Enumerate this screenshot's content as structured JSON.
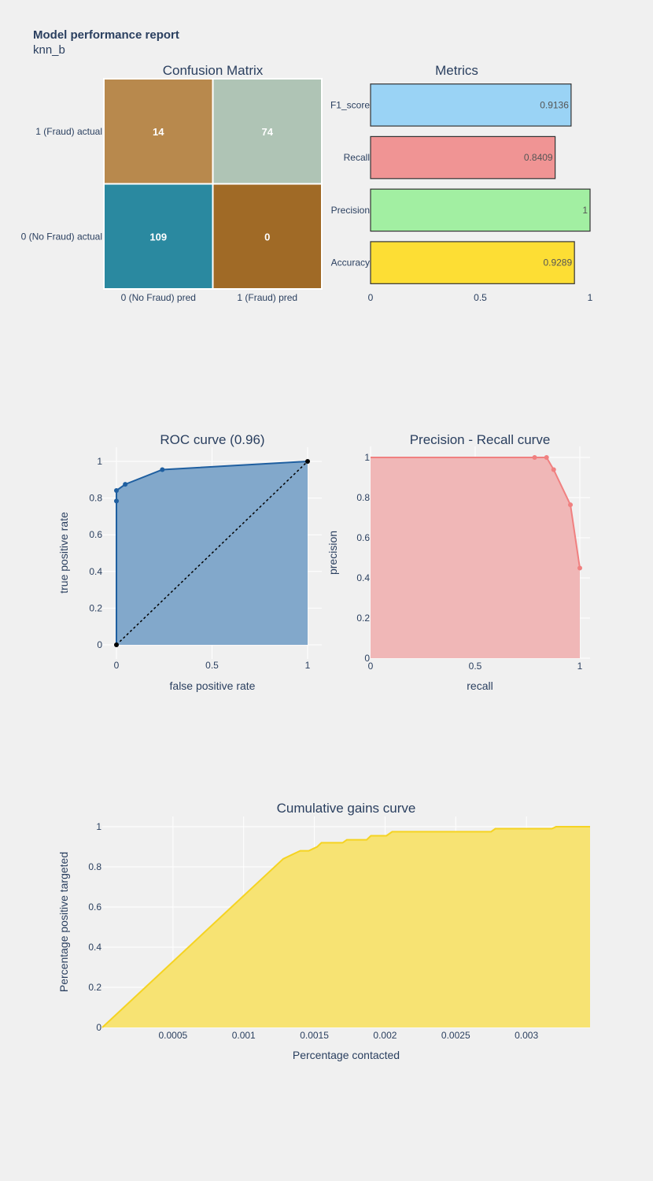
{
  "report": {
    "title": "Model performance report",
    "subtitle": "knn_b"
  },
  "colors": {
    "background": "#f0f0f0",
    "text": "#2a3f5f",
    "grid": "#ffffff",
    "roc_line": "#1f5fa0",
    "roc_fill": "#82a8cb",
    "pr_line": "#f08080",
    "pr_fill": "#f0b7b7",
    "gains_line": "#f5d322",
    "gains_fill": "#f7e373"
  },
  "chart_data": [
    {
      "type": "heatmap",
      "title": "Confusion Matrix",
      "x_categories": [
        "0 (No Fraud) pred",
        "1 (Fraud) pred"
      ],
      "y_categories": [
        "1 (Fraud) actual",
        "0 (No Fraud) actual"
      ],
      "cells": [
        {
          "row": 0,
          "col": 0,
          "value": 14,
          "label": "14",
          "color": "#b8894d"
        },
        {
          "row": 0,
          "col": 1,
          "value": 74,
          "label": "74",
          "color": "#afc4b5"
        },
        {
          "row": 1,
          "col": 0,
          "value": 109,
          "label": "109",
          "color": "#2a89a0"
        },
        {
          "row": 1,
          "col": 1,
          "value": 0,
          "label": "0",
          "color": "#a06a26"
        }
      ]
    },
    {
      "type": "bar",
      "orientation": "horizontal",
      "title": "Metrics",
      "categories": [
        "F1_score",
        "Recall",
        "Precision",
        "Accuracy"
      ],
      "values": [
        0.9136,
        0.8409,
        1,
        0.9289
      ],
      "labels": [
        "0.9136",
        "0.8409",
        "1",
        "0.9289"
      ],
      "colors": [
        "#9ad3f5",
        "#f09494",
        "#a2efa2",
        "#fdde34"
      ],
      "xlim": [
        0,
        1
      ],
      "xticks": [
        "0",
        "0.5",
        "1"
      ]
    },
    {
      "type": "line",
      "title": "ROC curve (0.96)",
      "xlabel": "false positive rate",
      "ylabel": "true positive rate",
      "xlim": [
        0,
        1
      ],
      "ylim": [
        0,
        1
      ],
      "xticks": [
        "0",
        "0.5",
        "1"
      ],
      "yticks": [
        "0",
        "0.2",
        "0.4",
        "0.6",
        "0.8",
        "1"
      ],
      "x": [
        0,
        0,
        0,
        0.046,
        0.24,
        1
      ],
      "y": [
        0,
        0.784,
        0.841,
        0.875,
        0.955,
        1
      ],
      "baseline": {
        "x": [
          0,
          1
        ],
        "y": [
          0,
          1
        ]
      }
    },
    {
      "type": "area",
      "title": "Precision - Recall curve",
      "xlabel": "recall",
      "ylabel": "precision",
      "xlim": [
        0,
        1
      ],
      "ylim": [
        0,
        1
      ],
      "xticks": [
        "0",
        "0.5",
        "1"
      ],
      "yticks": [
        "0",
        "0.2",
        "0.4",
        "0.6",
        "0.8",
        "1"
      ],
      "x": [
        0,
        0.784,
        0.841,
        0.875,
        0.955,
        1
      ],
      "y": [
        1,
        1,
        1,
        0.939,
        0.764,
        0.449
      ]
    },
    {
      "type": "area",
      "title": "Cumulative gains curve",
      "xlabel": "Percentage contacted",
      "ylabel": "Percentage positive targeted",
      "xlim": [
        0,
        0.00345
      ],
      "ylim": [
        0,
        1
      ],
      "xticks": [
        "0.0005",
        "0.001",
        "0.0015",
        "0.002",
        "0.0025",
        "0.003"
      ],
      "yticks": [
        "0",
        "0.2",
        "0.4",
        "0.6",
        "0.8",
        "1"
      ],
      "x": [
        0,
        0.00128,
        0.00131,
        0.00134,
        0.00137,
        0.0014,
        0.00146,
        0.00149,
        0.00152,
        0.00155,
        0.0017,
        0.00173,
        0.00187,
        0.0019,
        0.00201,
        0.00205,
        0.00275,
        0.00278,
        0.00318,
        0.00321,
        0.00345
      ],
      "y": [
        0,
        0.84,
        0.85,
        0.86,
        0.87,
        0.88,
        0.88,
        0.89,
        0.9,
        0.92,
        0.92,
        0.935,
        0.935,
        0.955,
        0.955,
        0.975,
        0.975,
        0.99,
        0.99,
        1,
        1
      ]
    }
  ]
}
